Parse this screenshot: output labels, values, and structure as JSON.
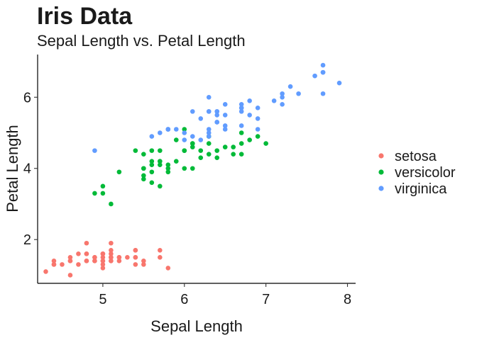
{
  "chart_data": {
    "type": "scatter",
    "title": "Iris Data",
    "subtitle": "Sepal Length vs. Petal Length",
    "xlabel": "Sepal Length",
    "ylabel": "Petal Length",
    "xlim": [
      4.2,
      8.1
    ],
    "ylim": [
      0.77,
      7.2
    ],
    "x_ticks": [
      5,
      6,
      7,
      8
    ],
    "y_ticks": [
      2,
      4,
      6
    ],
    "grid": false,
    "legend_position": "right",
    "series": [
      {
        "name": "setosa",
        "color": "#F8766D",
        "points": [
          [
            5.1,
            1.4
          ],
          [
            4.9,
            1.4
          ],
          [
            4.7,
            1.3
          ],
          [
            4.6,
            1.5
          ],
          [
            5.0,
            1.4
          ],
          [
            5.4,
            1.7
          ],
          [
            4.6,
            1.4
          ],
          [
            5.0,
            1.5
          ],
          [
            4.4,
            1.4
          ],
          [
            4.9,
            1.5
          ],
          [
            5.4,
            1.5
          ],
          [
            4.8,
            1.6
          ],
          [
            4.8,
            1.4
          ],
          [
            4.3,
            1.1
          ],
          [
            5.8,
            1.2
          ],
          [
            5.7,
            1.5
          ],
          [
            5.4,
            1.3
          ],
          [
            5.1,
            1.4
          ],
          [
            5.7,
            1.7
          ],
          [
            5.1,
            1.5
          ],
          [
            5.4,
            1.7
          ],
          [
            5.1,
            1.5
          ],
          [
            4.6,
            1.0
          ],
          [
            5.1,
            1.7
          ],
          [
            4.8,
            1.9
          ],
          [
            5.0,
            1.6
          ],
          [
            5.0,
            1.6
          ],
          [
            5.2,
            1.5
          ],
          [
            5.2,
            1.4
          ],
          [
            4.7,
            1.6
          ],
          [
            4.8,
            1.6
          ],
          [
            5.4,
            1.5
          ],
          [
            5.2,
            1.5
          ],
          [
            5.5,
            1.4
          ],
          [
            4.9,
            1.5
          ],
          [
            5.0,
            1.2
          ],
          [
            5.5,
            1.3
          ],
          [
            4.9,
            1.4
          ],
          [
            4.4,
            1.3
          ],
          [
            5.1,
            1.5
          ],
          [
            5.0,
            1.3
          ],
          [
            4.5,
            1.3
          ],
          [
            4.4,
            1.3
          ],
          [
            5.0,
            1.6
          ],
          [
            5.1,
            1.9
          ],
          [
            4.8,
            1.4
          ],
          [
            5.1,
            1.6
          ],
          [
            4.6,
            1.4
          ],
          [
            5.3,
            1.5
          ],
          [
            5.0,
            1.4
          ]
        ]
      },
      {
        "name": "versicolor",
        "color": "#00BA38",
        "points": [
          [
            7.0,
            4.7
          ],
          [
            6.4,
            4.5
          ],
          [
            6.9,
            4.9
          ],
          [
            5.5,
            4.0
          ],
          [
            6.5,
            4.6
          ],
          [
            5.7,
            4.5
          ],
          [
            6.3,
            4.7
          ],
          [
            4.9,
            3.3
          ],
          [
            6.6,
            4.6
          ],
          [
            5.2,
            3.9
          ],
          [
            5.0,
            3.5
          ],
          [
            5.9,
            4.2
          ],
          [
            6.0,
            4.0
          ],
          [
            6.1,
            4.7
          ],
          [
            5.6,
            3.6
          ],
          [
            6.7,
            4.4
          ],
          [
            5.6,
            4.5
          ],
          [
            5.8,
            4.1
          ],
          [
            6.2,
            4.5
          ],
          [
            5.6,
            3.9
          ],
          [
            5.9,
            4.8
          ],
          [
            6.1,
            4.0
          ],
          [
            6.3,
            4.9
          ],
          [
            6.1,
            4.7
          ],
          [
            6.4,
            4.3
          ],
          [
            6.6,
            4.4
          ],
          [
            6.8,
            4.8
          ],
          [
            6.7,
            5.0
          ],
          [
            6.0,
            4.5
          ],
          [
            5.7,
            3.5
          ],
          [
            5.5,
            3.8
          ],
          [
            5.5,
            3.7
          ],
          [
            5.8,
            3.9
          ],
          [
            6.0,
            5.1
          ],
          [
            5.4,
            4.5
          ],
          [
            6.0,
            4.5
          ],
          [
            6.7,
            4.7
          ],
          [
            6.3,
            4.4
          ],
          [
            5.6,
            4.1
          ],
          [
            5.5,
            4.0
          ],
          [
            5.5,
            4.4
          ],
          [
            6.1,
            4.6
          ],
          [
            5.8,
            4.0
          ],
          [
            5.0,
            3.3
          ],
          [
            5.6,
            4.2
          ],
          [
            5.7,
            4.2
          ],
          [
            5.7,
            4.2
          ],
          [
            6.2,
            4.3
          ],
          [
            5.1,
            3.0
          ],
          [
            5.7,
            4.1
          ]
        ]
      },
      {
        "name": "virginica",
        "color": "#619CFF",
        "points": [
          [
            6.3,
            6.0
          ],
          [
            5.8,
            5.1
          ],
          [
            7.1,
            5.9
          ],
          [
            6.3,
            5.6
          ],
          [
            6.5,
            5.8
          ],
          [
            7.6,
            6.6
          ],
          [
            4.9,
            4.5
          ],
          [
            7.3,
            6.3
          ],
          [
            6.7,
            5.8
          ],
          [
            7.2,
            6.1
          ],
          [
            6.5,
            5.1
          ],
          [
            6.4,
            5.3
          ],
          [
            6.8,
            5.5
          ],
          [
            5.7,
            5.0
          ],
          [
            5.8,
            5.1
          ],
          [
            6.4,
            5.3
          ],
          [
            6.5,
            5.5
          ],
          [
            7.7,
            6.7
          ],
          [
            7.7,
            6.9
          ],
          [
            6.0,
            5.0
          ],
          [
            6.9,
            5.7
          ],
          [
            5.6,
            4.9
          ],
          [
            7.7,
            6.7
          ],
          [
            6.3,
            4.9
          ],
          [
            6.7,
            5.7
          ],
          [
            7.2,
            6.0
          ],
          [
            6.2,
            4.8
          ],
          [
            6.1,
            4.9
          ],
          [
            6.4,
            5.6
          ],
          [
            7.2,
            5.8
          ],
          [
            7.4,
            6.1
          ],
          [
            7.9,
            6.4
          ],
          [
            6.4,
            5.6
          ],
          [
            6.3,
            5.1
          ],
          [
            6.1,
            5.6
          ],
          [
            7.7,
            6.1
          ],
          [
            6.3,
            5.6
          ],
          [
            6.4,
            5.5
          ],
          [
            6.0,
            4.8
          ],
          [
            6.9,
            5.4
          ],
          [
            6.7,
            5.6
          ],
          [
            6.9,
            5.1
          ],
          [
            5.8,
            5.1
          ],
          [
            6.8,
            5.9
          ],
          [
            6.7,
            5.7
          ],
          [
            6.7,
            5.2
          ],
          [
            6.3,
            5.0
          ],
          [
            6.5,
            5.2
          ],
          [
            6.2,
            5.4
          ],
          [
            5.9,
            5.1
          ]
        ]
      }
    ]
  }
}
